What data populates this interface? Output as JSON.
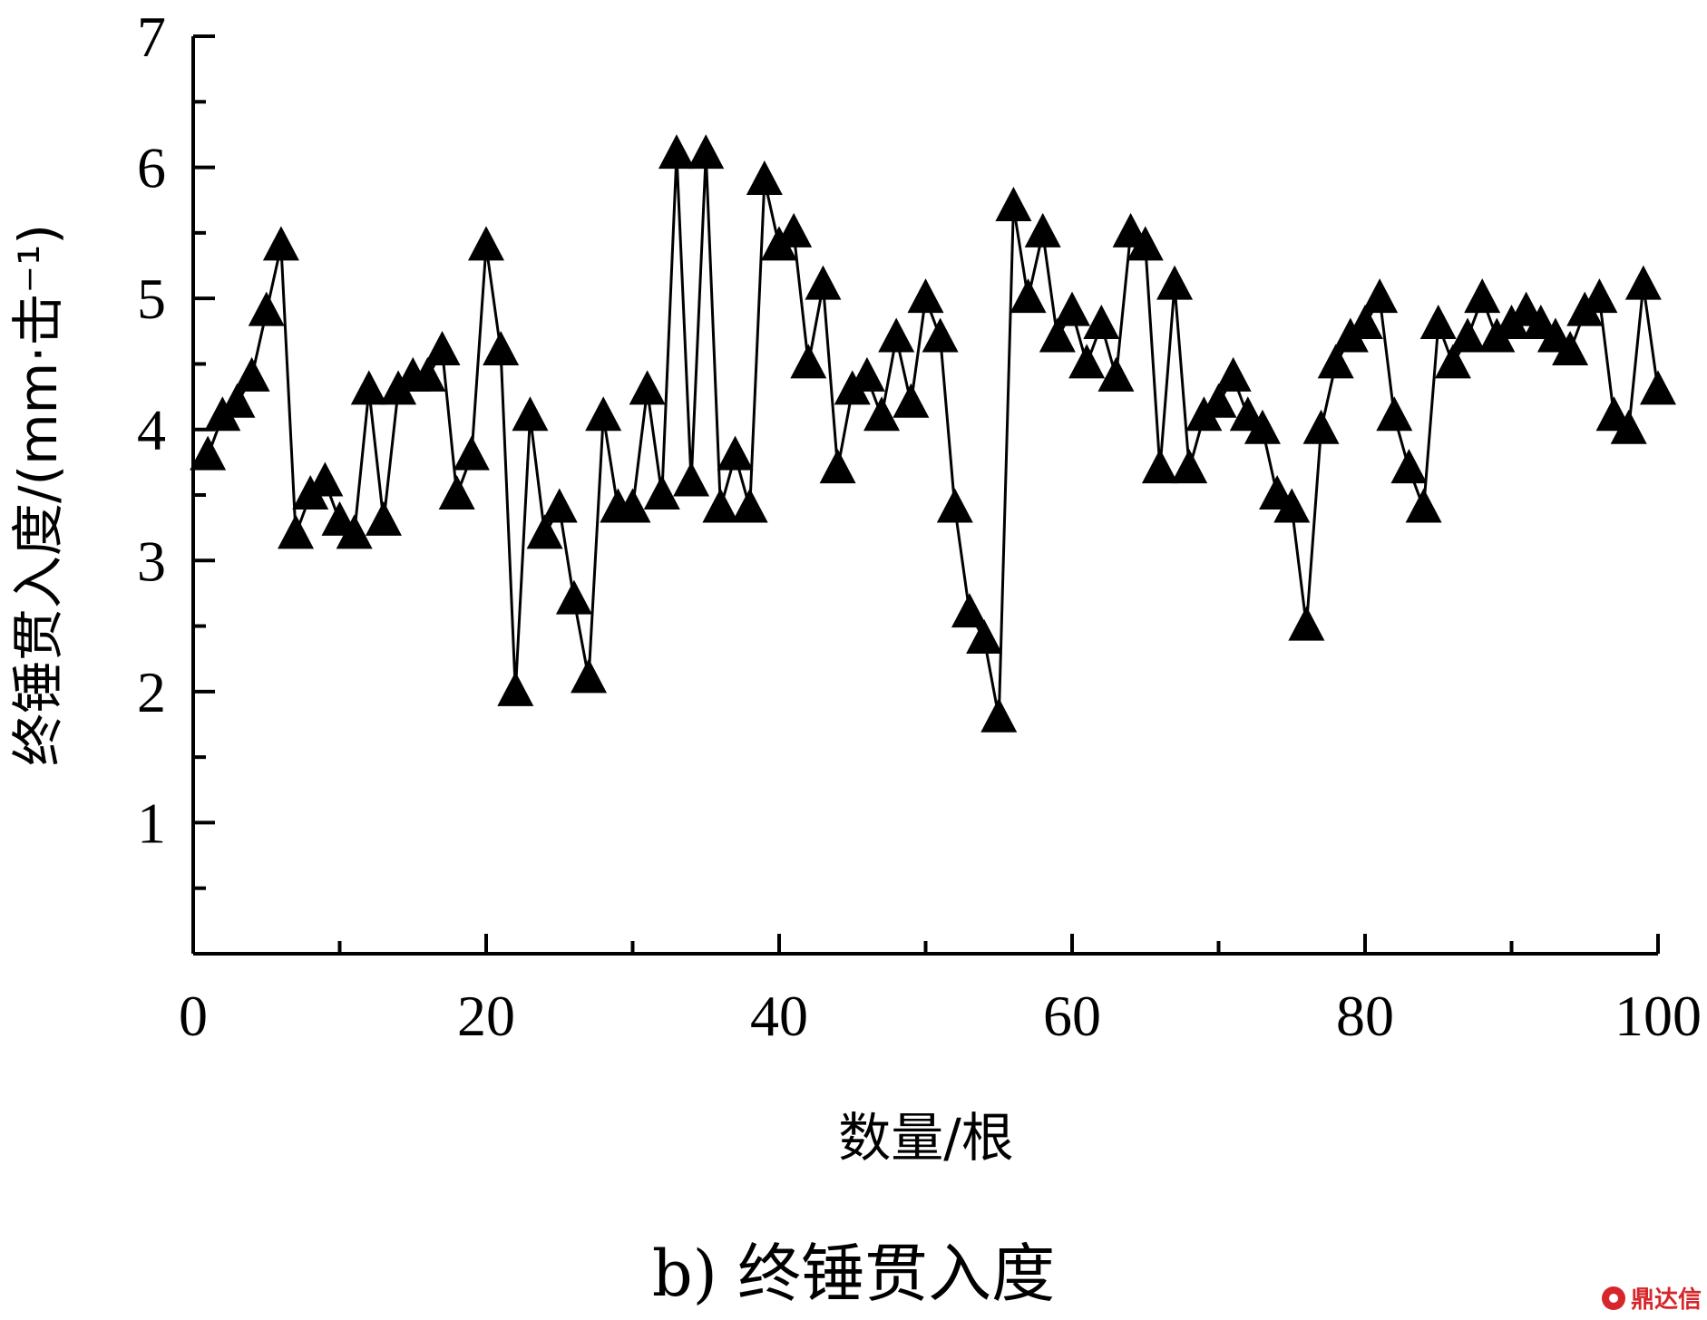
{
  "chart_data": {
    "type": "line",
    "marker": "filled-triangle",
    "caption": "b) 终锤贯入度",
    "xlabel": "数量/根",
    "ylabel": "终锤贯入度/(mm·击⁻¹)",
    "xlim": [
      0,
      100
    ],
    "ylim": [
      0,
      7
    ],
    "xticks": [
      0,
      20,
      40,
      60,
      80,
      100
    ],
    "yticks": [
      1,
      2,
      3,
      4,
      5,
      6,
      7
    ],
    "grid": false,
    "color": "#000000",
    "series": [
      {
        "x": [
          1,
          2,
          3,
          4,
          5,
          6,
          7,
          8,
          9,
          10,
          11,
          12,
          13,
          14,
          15,
          16,
          17,
          18,
          19,
          20,
          21,
          22,
          23,
          24,
          25,
          26,
          27,
          28,
          29,
          30,
          31,
          32,
          33,
          34,
          35,
          36,
          37,
          38,
          39,
          40,
          41,
          42,
          43,
          44,
          45,
          46,
          47,
          48,
          49,
          50,
          51,
          52,
          53,
          54,
          55,
          56,
          57,
          58,
          59,
          60,
          61,
          62,
          63,
          64,
          65,
          66,
          67,
          68,
          69,
          70,
          71,
          72,
          73,
          74,
          75,
          76,
          77,
          78,
          79,
          80,
          81,
          82,
          83,
          84,
          85,
          86,
          87,
          88,
          89,
          90,
          91,
          92,
          93,
          94,
          95,
          96,
          97,
          98,
          99,
          100
        ],
        "values": [
          3.8,
          4.1,
          4.2,
          4.4,
          4.9,
          5.4,
          3.2,
          3.5,
          3.6,
          3.3,
          3.2,
          4.3,
          3.3,
          4.3,
          4.4,
          4.4,
          4.6,
          3.5,
          3.8,
          5.4,
          4.6,
          2.0,
          4.1,
          3.2,
          3.4,
          2.7,
          2.1,
          4.1,
          3.4,
          3.4,
          4.3,
          3.5,
          6.1,
          3.6,
          6.1,
          3.4,
          3.8,
          3.4,
          5.9,
          5.4,
          5.5,
          4.5,
          5.1,
          3.7,
          4.3,
          4.4,
          4.1,
          4.7,
          4.2,
          5.0,
          4.7,
          3.4,
          2.6,
          2.4,
          1.8,
          5.7,
          5.0,
          5.5,
          4.7,
          4.9,
          4.5,
          4.8,
          4.4,
          5.5,
          5.4,
          3.7,
          5.1,
          3.7,
          4.1,
          4.2,
          4.4,
          4.1,
          4.0,
          3.5,
          3.4,
          2.5,
          4.0,
          4.5,
          4.7,
          4.8,
          5.0,
          4.1,
          3.7,
          3.4,
          4.8,
          4.5,
          4.7,
          5.0,
          4.7,
          4.8,
          4.9,
          4.8,
          4.7,
          4.6,
          4.9,
          5.0,
          4.1,
          4.0,
          5.1,
          4.3
        ]
      }
    ]
  },
  "watermark": "鼎达信"
}
